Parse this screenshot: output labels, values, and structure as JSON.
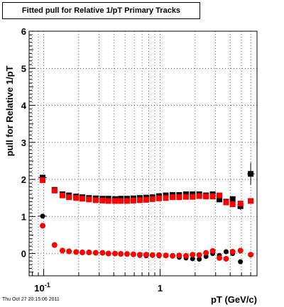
{
  "chart_data": {
    "type": "scatter",
    "title": "Fitted pull for Relative 1/pT  Primary Tracks",
    "xlabel": "pT (GeV/c)",
    "ylabel": "pull for Relative 1/pT",
    "x_scale": "log",
    "xlim": [
      0.075,
      6.8
    ],
    "ylim": [
      -0.6,
      6
    ],
    "y_ticks": [
      0,
      1,
      2,
      3,
      4,
      5,
      6
    ],
    "x_tick_labels": [
      {
        "value": 0.1,
        "label": "10^-1"
      },
      {
        "value": 1,
        "label": "1"
      }
    ],
    "grid": true,
    "series": [
      {
        "color": "#000000",
        "points": [
          {
            "x": 0.098,
            "y": 2.05,
            "xerr": [
              0.09,
              0.106
            ],
            "yerr": 0.05
          },
          {
            "x": 0.098,
            "y": 1.01,
            "xerr": [
              0.09,
              0.106
            ],
            "yerr": 0.05
          },
          {
            "x": 0.124,
            "y": 1.72
          },
          {
            "x": 0.145,
            "y": 1.6
          },
          {
            "x": 0.165,
            "y": 1.57
          },
          {
            "x": 0.19,
            "y": 1.54
          },
          {
            "x": 0.215,
            "y": 1.52
          },
          {
            "x": 0.245,
            "y": 1.5
          },
          {
            "x": 0.28,
            "y": 1.49
          },
          {
            "x": 0.32,
            "y": 1.48
          },
          {
            "x": 0.36,
            "y": 1.48
          },
          {
            "x": 0.41,
            "y": 1.47
          },
          {
            "x": 0.46,
            "y": 1.48
          },
          {
            "x": 0.52,
            "y": 1.48
          },
          {
            "x": 0.59,
            "y": 1.49
          },
          {
            "x": 0.67,
            "y": 1.5
          },
          {
            "x": 0.76,
            "y": 1.51
          },
          {
            "x": 0.86,
            "y": 1.52
          },
          {
            "x": 0.98,
            "y": 1.55
          },
          {
            "x": 1.12,
            "y": 1.57
          },
          {
            "x": 1.28,
            "y": 1.58
          },
          {
            "x": 1.46,
            "y": 1.58
          },
          {
            "x": 1.67,
            "y": 1.6
          },
          {
            "x": 1.9,
            "y": 1.6
          },
          {
            "x": 2.17,
            "y": 1.6
          },
          {
            "x": 2.48,
            "y": 1.57
          },
          {
            "x": 2.83,
            "y": 1.6
          },
          {
            "x": 3.23,
            "y": 1.46
          },
          {
            "x": 3.69,
            "y": 1.4
          },
          {
            "x": 4.2,
            "y": 1.47
          },
          {
            "x": 4.9,
            "y": 1.28,
            "yerr": 0.1
          },
          {
            "x": 6.0,
            "y": 2.15,
            "xerr": [
              5.6,
              6.5
            ],
            "yerr": 0.3
          },
          {
            "x": 0.124,
            "y": 0.24
          },
          {
            "x": 0.145,
            "y": 0.09
          },
          {
            "x": 0.165,
            "y": 0.07
          },
          {
            "x": 0.19,
            "y": 0.05
          },
          {
            "x": 0.215,
            "y": 0.04
          },
          {
            "x": 0.245,
            "y": 0.04
          },
          {
            "x": 0.28,
            "y": 0.03
          },
          {
            "x": 0.32,
            "y": 0.02
          },
          {
            "x": 0.36,
            "y": 0.01
          },
          {
            "x": 0.41,
            "y": 0.0
          },
          {
            "x": 0.46,
            "y": 0.0
          },
          {
            "x": 0.52,
            "y": -0.02
          },
          {
            "x": 0.59,
            "y": -0.03
          },
          {
            "x": 0.67,
            "y": -0.05
          },
          {
            "x": 0.76,
            "y": -0.06
          },
          {
            "x": 0.86,
            "y": -0.05
          },
          {
            "x": 0.98,
            "y": -0.06
          },
          {
            "x": 1.12,
            "y": -0.06
          },
          {
            "x": 1.28,
            "y": -0.07
          },
          {
            "x": 1.46,
            "y": -0.1
          },
          {
            "x": 1.67,
            "y": -0.12
          },
          {
            "x": 1.9,
            "y": -0.14
          },
          {
            "x": 2.17,
            "y": -0.15
          },
          {
            "x": 2.48,
            "y": -0.08
          },
          {
            "x": 2.83,
            "y": 0.0
          },
          {
            "x": 3.23,
            "y": -0.05
          },
          {
            "x": 3.69,
            "y": 0.05
          },
          {
            "x": 4.2,
            "y": 0.0
          },
          {
            "x": 4.9,
            "y": -0.22
          },
          {
            "x": 6.0,
            "y": -0.03
          }
        ]
      },
      {
        "color": "#ff0000",
        "points": [
          {
            "x": 0.098,
            "y": 1.98
          },
          {
            "x": 0.098,
            "y": 0.75
          },
          {
            "x": 0.124,
            "y": 1.7
          },
          {
            "x": 0.145,
            "y": 1.57
          },
          {
            "x": 0.165,
            "y": 1.52
          },
          {
            "x": 0.19,
            "y": 1.5
          },
          {
            "x": 0.215,
            "y": 1.48
          },
          {
            "x": 0.245,
            "y": 1.46
          },
          {
            "x": 0.28,
            "y": 1.44
          },
          {
            "x": 0.32,
            "y": 1.43
          },
          {
            "x": 0.36,
            "y": 1.42
          },
          {
            "x": 0.41,
            "y": 1.42
          },
          {
            "x": 0.46,
            "y": 1.42
          },
          {
            "x": 0.52,
            "y": 1.42
          },
          {
            "x": 0.59,
            "y": 1.43
          },
          {
            "x": 0.67,
            "y": 1.44
          },
          {
            "x": 0.76,
            "y": 1.45
          },
          {
            "x": 0.86,
            "y": 1.47
          },
          {
            "x": 0.98,
            "y": 1.49
          },
          {
            "x": 1.12,
            "y": 1.5
          },
          {
            "x": 1.28,
            "y": 1.52
          },
          {
            "x": 1.46,
            "y": 1.52
          },
          {
            "x": 1.67,
            "y": 1.53
          },
          {
            "x": 1.9,
            "y": 1.53
          },
          {
            "x": 2.17,
            "y": 1.55
          },
          {
            "x": 2.48,
            "y": 1.54
          },
          {
            "x": 2.83,
            "y": 1.54
          },
          {
            "x": 3.23,
            "y": 1.57
          },
          {
            "x": 3.69,
            "y": 1.38
          },
          {
            "x": 4.2,
            "y": 1.33
          },
          {
            "x": 4.9,
            "y": 1.35
          },
          {
            "x": 6.0,
            "y": 1.42
          },
          {
            "x": 0.124,
            "y": 0.23
          },
          {
            "x": 0.145,
            "y": 0.08
          },
          {
            "x": 0.165,
            "y": 0.06
          },
          {
            "x": 0.19,
            "y": 0.04
          },
          {
            "x": 0.215,
            "y": 0.03
          },
          {
            "x": 0.245,
            "y": 0.03
          },
          {
            "x": 0.28,
            "y": 0.02
          },
          {
            "x": 0.32,
            "y": 0.02
          },
          {
            "x": 0.36,
            "y": 0.0
          },
          {
            "x": 0.41,
            "y": 0.0
          },
          {
            "x": 0.46,
            "y": -0.01
          },
          {
            "x": 0.52,
            "y": -0.01
          },
          {
            "x": 0.59,
            "y": -0.02
          },
          {
            "x": 0.67,
            "y": -0.03
          },
          {
            "x": 0.76,
            "y": -0.03
          },
          {
            "x": 0.86,
            "y": -0.04
          },
          {
            "x": 0.98,
            "y": -0.04
          },
          {
            "x": 1.12,
            "y": -0.05
          },
          {
            "x": 1.28,
            "y": -0.06
          },
          {
            "x": 1.46,
            "y": -0.05
          },
          {
            "x": 1.67,
            "y": -0.06
          },
          {
            "x": 1.9,
            "y": -0.03
          },
          {
            "x": 2.17,
            "y": -0.04
          },
          {
            "x": 2.48,
            "y": 0.02
          },
          {
            "x": 2.83,
            "y": 0.07
          },
          {
            "x": 3.23,
            "y": -0.12
          },
          {
            "x": 3.69,
            "y": -0.14
          },
          {
            "x": 4.2,
            "y": 0.05
          },
          {
            "x": 4.9,
            "y": 0.08
          },
          {
            "x": 6.0,
            "y": -0.03
          }
        ]
      }
    ]
  },
  "footer": {
    "timestamp": "Thu Oct 27 20:15:06 2011"
  }
}
